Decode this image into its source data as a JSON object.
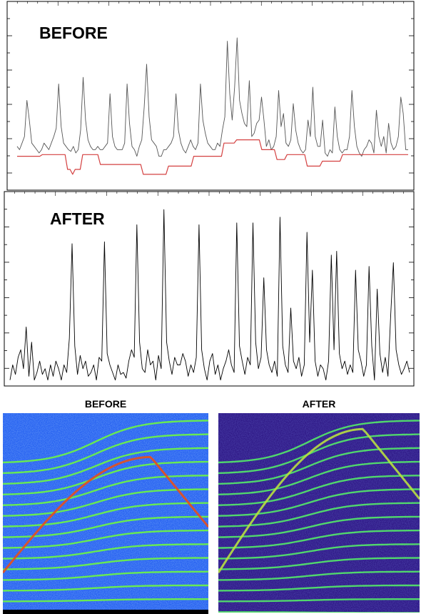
{
  "chart_data": [
    {
      "type": "line",
      "title": "BEFORE",
      "series": [
        {
          "role": "signal",
          "color": "#555555",
          "values": [
            0.24,
            0.22,
            0.26,
            0.3,
            0.52,
            0.4,
            0.26,
            0.24,
            0.22,
            0.2,
            0.22,
            0.26,
            0.24,
            0.22,
            0.26,
            0.3,
            0.35,
            0.62,
            0.36,
            0.26,
            0.24,
            0.22,
            0.21,
            0.24,
            0.2,
            0.22,
            0.34,
            0.66,
            0.4,
            0.28,
            0.24,
            0.22,
            0.22,
            0.24,
            0.22,
            0.22,
            0.24,
            0.26,
            0.56,
            0.3,
            0.24,
            0.22,
            0.22,
            0.22,
            0.26,
            0.62,
            0.38,
            0.24,
            0.22,
            0.18,
            0.24,
            0.28,
            0.48,
            0.74,
            0.42,
            0.28,
            0.26,
            0.24,
            0.18,
            0.18,
            0.22,
            0.22,
            0.24,
            0.26,
            0.3,
            0.56,
            0.34,
            0.26,
            0.22,
            0.2,
            0.24,
            0.28,
            0.24,
            0.22,
            0.26,
            0.62,
            0.4,
            0.32,
            0.26,
            0.24,
            0.22,
            0.22,
            0.26,
            0.24,
            0.34,
            0.42,
            0.88,
            0.56,
            0.4,
            0.6,
            0.9,
            0.52,
            0.44,
            0.38,
            0.36,
            0.64,
            0.3,
            0.32,
            0.38,
            0.4,
            0.54,
            0.4,
            0.24,
            0.28,
            0.22,
            0.24,
            0.3,
            0.58,
            0.36,
            0.44,
            0.26,
            0.24,
            0.28,
            0.5,
            0.34,
            0.26,
            0.22,
            0.2,
            0.22,
            0.4,
            0.3,
            0.6,
            0.3,
            0.24,
            0.24,
            0.4,
            0.2,
            0.18,
            0.22,
            0.2,
            0.48,
            0.3,
            0.22,
            0.2,
            0.22,
            0.22,
            0.3,
            0.58,
            0.36,
            0.24,
            0.2,
            0.18,
            0.22,
            0.24,
            0.28,
            0.26,
            0.2,
            0.46,
            0.3,
            0.24,
            0.3,
            0.2,
            0.38,
            0.26,
            0.22,
            0.24,
            0.3,
            0.54,
            0.44,
            0.22,
            0.22
          ]
        },
        {
          "role": "baseline",
          "color": "#d44040",
          "values": [
            0.18,
            0.18,
            0.18,
            0.18,
            0.18,
            0.18,
            0.18,
            0.18,
            0.18,
            0.18,
            0.19,
            0.19,
            0.19,
            0.19,
            0.19,
            0.19,
            0.19,
            0.19,
            0.19,
            0.19,
            0.1,
            0.1,
            0.07,
            0.1,
            0.1,
            0.1,
            0.19,
            0.19,
            0.19,
            0.19,
            0.19,
            0.19,
            0.19,
            0.13,
            0.13,
            0.13,
            0.13,
            0.13,
            0.13,
            0.13,
            0.13,
            0.13,
            0.13,
            0.13,
            0.13,
            0.13,
            0.13,
            0.13,
            0.13,
            0.13,
            0.07,
            0.07,
            0.07,
            0.07,
            0.07,
            0.07,
            0.07,
            0.07,
            0.07,
            0.07,
            0.12,
            0.12,
            0.12,
            0.12,
            0.12,
            0.12,
            0.12,
            0.12,
            0.12,
            0.12,
            0.18,
            0.18,
            0.18,
            0.18,
            0.18,
            0.18,
            0.18,
            0.18,
            0.18,
            0.18,
            0.18,
            0.18,
            0.26,
            0.26,
            0.26,
            0.26,
            0.26,
            0.28,
            0.28,
            0.28,
            0.28,
            0.28,
            0.28,
            0.28,
            0.28,
            0.28,
            0.28,
            0.22,
            0.22,
            0.22,
            0.22,
            0.22,
            0.22,
            0.16,
            0.16,
            0.16,
            0.16,
            0.19,
            0.19,
            0.19,
            0.19,
            0.19,
            0.19,
            0.19,
            0.19,
            0.12,
            0.12,
            0.12,
            0.12,
            0.12,
            0.12,
            0.15,
            0.15,
            0.15,
            0.15,
            0.15,
            0.15,
            0.15,
            0.15,
            0.19,
            0.19,
            0.19,
            0.19,
            0.19,
            0.19,
            0.19,
            0.19,
            0.19,
            0.19,
            0.19,
            0.19,
            0.19,
            0.19,
            0.19,
            0.19,
            0.19,
            0.19,
            0.19,
            0.19,
            0.19,
            0.19,
            0.19,
            0.19,
            0.19,
            0.19,
            0.19
          ]
        }
      ],
      "ylim": [
        0,
        1
      ],
      "grid": false,
      "ticks": "inward"
    },
    {
      "type": "line",
      "title": "AFTER",
      "series": [
        {
          "role": "signal",
          "color": "#000000",
          "values": [
            0.02,
            0.1,
            0.05,
            0.14,
            0.18,
            0.08,
            0.3,
            0.04,
            0.22,
            0.02,
            0.06,
            0.12,
            0.05,
            0.08,
            0.02,
            0.1,
            0.04,
            0.12,
            0.08,
            0.02,
            0.1,
            0.06,
            0.24,
            0.74,
            0.2,
            0.05,
            0.15,
            0.08,
            0.12,
            0.04,
            0.06,
            0.1,
            0.02,
            0.14,
            0.12,
            0.75,
            0.16,
            0.1,
            0.06,
            0.02,
            0.1,
            0.05,
            0.06,
            0.03,
            0.12,
            0.18,
            0.14,
            0.84,
            0.22,
            0.08,
            0.06,
            0.18,
            0.1,
            0.12,
            0.02,
            0.15,
            0.08,
            0.92,
            0.22,
            0.12,
            0.05,
            0.14,
            0.1,
            0.1,
            0.16,
            0.12,
            0.04,
            0.1,
            0.06,
            0.14,
            0.84,
            0.18,
            0.08,
            0.02,
            0.12,
            0.16,
            0.05,
            0.1,
            0.02,
            0.08,
            0.12,
            0.18,
            0.1,
            0.06,
            0.85,
            0.2,
            0.12,
            0.05,
            0.14,
            0.1,
            0.85,
            0.22,
            0.08,
            0.14,
            0.56,
            0.18,
            0.1,
            0.06,
            0.12,
            0.04,
            0.88,
            0.2,
            0.1,
            0.06,
            0.4,
            0.12,
            0.08,
            0.14,
            0.04,
            0.1,
            0.8,
            0.22,
            0.6,
            0.12,
            0.04,
            0.1,
            0.08,
            0.02,
            0.12,
            0.68,
            0.18,
            0.7,
            0.16,
            0.08,
            0.12,
            0.05,
            0.1,
            0.06,
            0.6,
            0.18,
            0.12,
            0.04,
            0.1,
            0.62,
            0.2,
            0.02,
            0.5,
            0.16,
            0.06,
            0.14,
            0.04,
            0.36,
            0.64,
            0.18,
            0.1,
            0.05,
            0.08,
            0.12,
            0.06
          ]
        }
      ],
      "ylim": [
        0,
        1
      ],
      "grid": false,
      "ticks": "inward"
    },
    {
      "type": "heatmap",
      "title": "BEFORE",
      "colormap": [
        "#0b1fc4",
        "#1e63f0",
        "#22c7e0",
        "#4ff06a",
        "#e8ee2a",
        "#f07a1a",
        "#d01010"
      ],
      "background": "#1e5af0",
      "streak_color": "#6af04a",
      "arc_color": "#e8501a",
      "arc_peak": 0.4
    },
    {
      "type": "heatmap",
      "title": "AFTER",
      "colormap": [
        "#1a0a5a",
        "#3a1490",
        "#1e63f0",
        "#22c7e0",
        "#4ff06a",
        "#e8ee2a"
      ],
      "background": "#2a1180",
      "streak_color": "#52e06a",
      "arc_color": "#b8e040",
      "arc_peak": 0.26
    }
  ]
}
